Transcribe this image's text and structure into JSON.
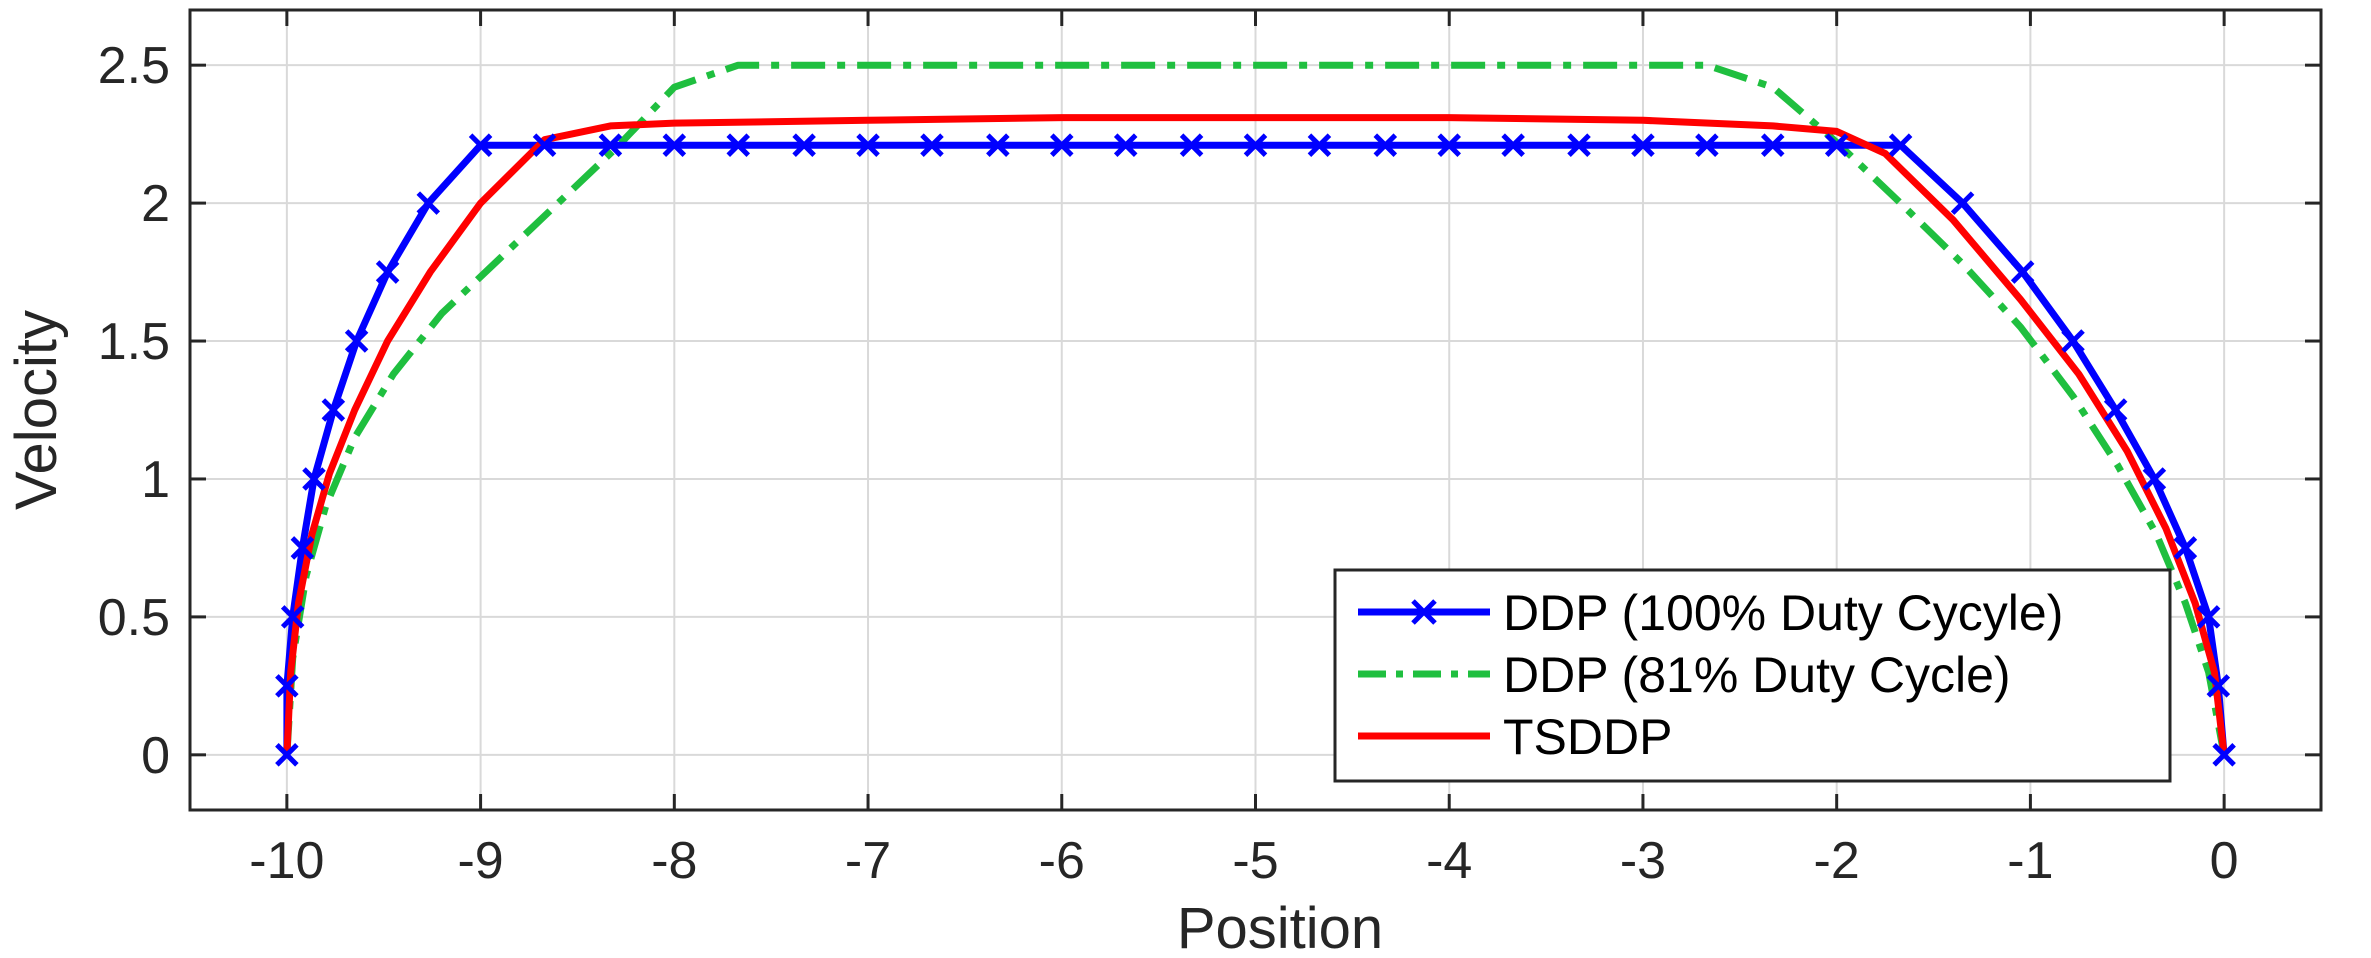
{
  "chart_data": {
    "type": "line",
    "title": "",
    "xlabel": "Position",
    "ylabel": "Velocity",
    "xlim": [
      -10.5,
      0.5
    ],
    "ylim": [
      -0.2,
      2.7
    ],
    "xticks": [
      -10,
      -9,
      -8,
      -7,
      -6,
      -5,
      -4,
      -3,
      -2,
      -1,
      0
    ],
    "xtick_labels": [
      "-10",
      "-9",
      "-8",
      "-7",
      "-6",
      "-5",
      "-4",
      "-3",
      "-2",
      "-1",
      "0"
    ],
    "yticks": [
      0,
      0.5,
      1,
      1.5,
      2,
      2.5
    ],
    "ytick_labels": [
      "0",
      "0.5",
      "1",
      "1.5",
      "2",
      "2.5"
    ],
    "grid": true,
    "legend_position": "bottom-right",
    "series": [
      {
        "name": "DDP (100% Duty Cycyle)",
        "color": "#0000ff",
        "style": "solid",
        "marker": "x",
        "x": [
          -10,
          -10,
          -9.97,
          -9.92,
          -9.86,
          -9.76,
          -9.64,
          -9.48,
          -9.27,
          -9.0,
          -8.67,
          -8.33,
          -8.0,
          -7.67,
          -7.33,
          -7.0,
          -6.67,
          -6.33,
          -6.0,
          -5.67,
          -5.33,
          -5.0,
          -4.67,
          -4.33,
          -4.0,
          -3.67,
          -3.33,
          -3.0,
          -2.67,
          -2.33,
          -2.0,
          -1.67,
          -1.35,
          -1.04,
          -0.78,
          -0.56,
          -0.36,
          -0.2,
          -0.08,
          -0.03,
          0
        ],
        "y": [
          0,
          0.25,
          0.5,
          0.75,
          1.0,
          1.25,
          1.5,
          1.75,
          2.0,
          2.21,
          2.21,
          2.21,
          2.21,
          2.21,
          2.21,
          2.21,
          2.21,
          2.21,
          2.21,
          2.21,
          2.21,
          2.21,
          2.21,
          2.21,
          2.21,
          2.21,
          2.21,
          2.21,
          2.21,
          2.21,
          2.21,
          2.21,
          2.0,
          1.75,
          1.5,
          1.25,
          1.0,
          0.75,
          0.5,
          0.25,
          0
        ]
      },
      {
        "name": "DDP (81% Duty Cycle)",
        "color": "#1fbf3f",
        "style": "dashdot",
        "marker": "none",
        "x": [
          -10,
          -9.97,
          -9.9,
          -9.8,
          -9.65,
          -9.45,
          -9.2,
          -8.9,
          -8.6,
          -8.3,
          -8.0,
          -7.67,
          -7.33,
          -7.0,
          -6.0,
          -5.0,
          -4.0,
          -3.0,
          -2.67,
          -2.33,
          -2.0,
          -1.7,
          -1.35,
          -1.05,
          -0.78,
          -0.55,
          -0.35,
          -0.2,
          -0.08,
          0
        ],
        "y": [
          0,
          0.35,
          0.65,
          0.9,
          1.15,
          1.38,
          1.6,
          1.8,
          2.0,
          2.2,
          2.42,
          2.5,
          2.5,
          2.5,
          2.5,
          2.5,
          2.5,
          2.5,
          2.5,
          2.42,
          2.22,
          2.02,
          1.78,
          1.55,
          1.3,
          1.05,
          0.8,
          0.55,
          0.3,
          0
        ]
      },
      {
        "name": "TSDDP",
        "color": "#ff0000",
        "style": "solid",
        "marker": "none",
        "x": [
          -10,
          -9.98,
          -9.94,
          -9.87,
          -9.78,
          -9.65,
          -9.48,
          -9.26,
          -9.0,
          -8.67,
          -8.33,
          -8.0,
          -7.0,
          -6.0,
          -5.0,
          -4.0,
          -3.0,
          -2.33,
          -2.0,
          -1.75,
          -1.4,
          -1.05,
          -0.75,
          -0.5,
          -0.3,
          -0.15,
          -0.05,
          0
        ],
        "y": [
          0,
          0.3,
          0.55,
          0.8,
          1.02,
          1.25,
          1.5,
          1.75,
          2.0,
          2.23,
          2.28,
          2.29,
          2.3,
          2.31,
          2.31,
          2.31,
          2.3,
          2.28,
          2.26,
          2.18,
          1.94,
          1.65,
          1.38,
          1.1,
          0.82,
          0.55,
          0.3,
          0
        ]
      }
    ]
  }
}
